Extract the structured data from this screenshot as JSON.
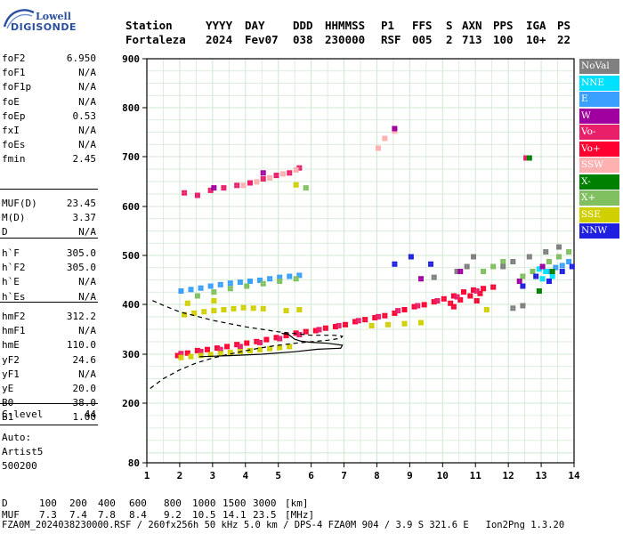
{
  "logo": {
    "top": "Lowell",
    "bottom": "DIGISONDE"
  },
  "header": {
    "row1": [
      "Station",
      "YYYY",
      "DAY",
      "DDD",
      "HHMMSS",
      "P1",
      "FFS",
      "S",
      "AXN",
      "PPS",
      "IGA",
      "PS"
    ],
    "row2": [
      "Fortaleza",
      "2024",
      "Fev07",
      "038",
      "230000",
      "RSF",
      "005",
      "2",
      "713",
      "100",
      "10+",
      "22"
    ]
  },
  "params_group1": [
    {
      "name": "foF2",
      "value": "6.950"
    },
    {
      "name": "foF1",
      "value": "N/A"
    },
    {
      "name": "foF1p",
      "value": "N/A"
    },
    {
      "name": "foE",
      "value": "N/A"
    },
    {
      "name": "foEp",
      "value": "0.53"
    },
    {
      "name": "fxI",
      "value": "N/A"
    },
    {
      "name": "foEs",
      "value": "N/A"
    },
    {
      "name": "fmin",
      "value": "2.45"
    }
  ],
  "params_group2": [
    {
      "name": "MUF(D)",
      "value": "23.45"
    },
    {
      "name": "M(D)",
      "value": "3.37"
    },
    {
      "name": "D",
      "value": "N/A"
    }
  ],
  "params_group3": [
    {
      "name": "h`F",
      "value": "305.0"
    },
    {
      "name": "h`F2",
      "value": "305.0"
    },
    {
      "name": "h`E",
      "value": "N/A"
    },
    {
      "name": "h`Es",
      "value": "N/A"
    }
  ],
  "params_group4": [
    {
      "name": "hmF2",
      "value": "312.2"
    },
    {
      "name": "hmF1",
      "value": "N/A"
    },
    {
      "name": "hmE",
      "value": "110.0"
    },
    {
      "name": "yF2",
      "value": "24.6"
    },
    {
      "name": "yF1",
      "value": "N/A"
    },
    {
      "name": "yE",
      "value": "20.0"
    },
    {
      "name": "B0",
      "value": "38.0"
    },
    {
      "name": "B1",
      "value": "1.00"
    }
  ],
  "params_group5": [
    {
      "name": "C-level",
      "value": "44"
    }
  ],
  "auto_block": [
    "Auto:",
    "Artist5",
    "500200"
  ],
  "legend": [
    {
      "label": "NoVal",
      "color": "#808080"
    },
    {
      "label": "NNE",
      "color": "#00e0ff"
    },
    {
      "label": "E",
      "color": "#3aa0ff"
    },
    {
      "label": "W",
      "color": "#a000a0"
    },
    {
      "label": "Vo-",
      "color": "#e8206a"
    },
    {
      "label": "Vo+",
      "color": "#ff0030"
    },
    {
      "label": "SSW",
      "color": "#ffb0b0"
    },
    {
      "label": "X-",
      "color": "#008000"
    },
    {
      "label": "X+",
      "color": "#80c060"
    },
    {
      "label": "SSE",
      "color": "#d0d000"
    },
    {
      "label": "NNW",
      "color": "#2020e0"
    }
  ],
  "bottom_table": {
    "d_label": "D",
    "d_values": [
      "100",
      "200",
      "400",
      "600",
      "800",
      "1000",
      "1500",
      "3000"
    ],
    "d_unit": "[km]",
    "muf_label": "MUF",
    "muf_values": [
      "7.3",
      "7.4",
      "7.8",
      "8.4",
      "9.2",
      "10.5",
      "14.1",
      "23.5"
    ],
    "muf_unit": "[MHz]"
  },
  "footer": "FZA0M_2024038230000.RSF / 260fx256h 50 kHz 5.0 km / DPS-4 FZA0M 904 / 3.9 S 321.6 E   Ion2Png 1.3.20",
  "chart_data": {
    "type": "scatter",
    "x_ticks": [
      1,
      2,
      3,
      4,
      5,
      6,
      7,
      8,
      9,
      10,
      11,
      12,
      13,
      14
    ],
    "y_ticks": [
      80,
      200,
      300,
      400,
      500,
      600,
      700,
      800,
      900
    ],
    "xlim": [
      1,
      14
    ],
    "ylim": [
      80,
      900
    ],
    "grid": true,
    "profile_dashed": [
      [
        1.1,
        230
      ],
      [
        1.5,
        250
      ],
      [
        2.0,
        268
      ],
      [
        2.5,
        282
      ],
      [
        3.0,
        292
      ],
      [
        3.5,
        300
      ],
      [
        4.0,
        307
      ],
      [
        4.5,
        313
      ],
      [
        5.0,
        318
      ],
      [
        5.5,
        322
      ],
      [
        6.0,
        325
      ],
      [
        6.5,
        328
      ],
      [
        6.9,
        332
      ],
      [
        6.95,
        336
      ],
      [
        6.7,
        338
      ],
      [
        6.0,
        338
      ],
      [
        5.0,
        345
      ],
      [
        4.0,
        355
      ],
      [
        3.0,
        368
      ],
      [
        2.0,
        385
      ],
      [
        1.5,
        398
      ],
      [
        1.1,
        410
      ]
    ],
    "profile_solid": [
      [
        2.6,
        295
      ],
      [
        3.5,
        297
      ],
      [
        4.5,
        300
      ],
      [
        5.5,
        305
      ],
      [
        6.2,
        310
      ],
      [
        6.9,
        312
      ],
      [
        6.95,
        318
      ],
      [
        6.5,
        322
      ],
      [
        6.0,
        324
      ],
      [
        5.7,
        326
      ],
      [
        5.5,
        330
      ],
      [
        5.4,
        335
      ],
      [
        5.3,
        340
      ],
      [
        5.1,
        342
      ]
    ],
    "clusters": [
      {
        "color": "#ff0030",
        "pts": [
          [
            1.9,
            300
          ],
          [
            2.2,
            305
          ],
          [
            2.5,
            310
          ],
          [
            2.8,
            312
          ],
          [
            3.1,
            315
          ],
          [
            3.4,
            318
          ],
          [
            3.7,
            322
          ],
          [
            4.0,
            325
          ],
          [
            4.3,
            328
          ],
          [
            4.6,
            332
          ],
          [
            4.9,
            336
          ],
          [
            5.2,
            340
          ],
          [
            5.5,
            345
          ],
          [
            5.8,
            348
          ],
          [
            6.1,
            350
          ],
          [
            6.4,
            355
          ],
          [
            6.7,
            358
          ],
          [
            7.0,
            362
          ],
          [
            7.3,
            368
          ],
          [
            7.6,
            372
          ],
          [
            7.9,
            376
          ],
          [
            8.2,
            380
          ],
          [
            8.5,
            385
          ],
          [
            8.8,
            392
          ],
          [
            9.1,
            398
          ],
          [
            9.4,
            402
          ],
          [
            9.7,
            408
          ],
          [
            10.0,
            414
          ],
          [
            10.3,
            420
          ],
          [
            10.6,
            428
          ],
          [
            10.9,
            432
          ],
          [
            11.2,
            435
          ],
          [
            11.5,
            438
          ],
          [
            10.2,
            405
          ],
          [
            10.5,
            412
          ],
          [
            10.8,
            420
          ],
          [
            11.1,
            425
          ],
          [
            10.3,
            398
          ],
          [
            11.0,
            410
          ]
        ]
      },
      {
        "color": "#e8206a",
        "pts": [
          [
            2.0,
            304
          ],
          [
            2.6,
            308
          ],
          [
            3.2,
            312
          ],
          [
            3.8,
            318
          ],
          [
            4.4,
            326
          ],
          [
            5.0,
            334
          ],
          [
            5.6,
            342
          ],
          [
            6.2,
            352
          ],
          [
            6.8,
            360
          ],
          [
            7.4,
            370
          ],
          [
            8.0,
            378
          ],
          [
            8.6,
            390
          ],
          [
            9.2,
            400
          ],
          [
            9.8,
            410
          ],
          [
            10.4,
            418
          ],
          [
            11.0,
            430
          ],
          [
            2.1,
            630
          ],
          [
            2.5,
            625
          ],
          [
            2.9,
            635
          ],
          [
            3.3,
            640
          ],
          [
            3.7,
            645
          ],
          [
            4.1,
            650
          ],
          [
            4.5,
            658
          ],
          [
            4.9,
            665
          ],
          [
            5.3,
            670
          ],
          [
            5.6,
            680
          ],
          [
            12.5,
            700
          ]
        ]
      },
      {
        "color": "#ffb0b0",
        "pts": [
          [
            3.9,
            645
          ],
          [
            4.3,
            652
          ],
          [
            4.7,
            660
          ],
          [
            5.1,
            668
          ],
          [
            5.5,
            676
          ],
          [
            8.0,
            720
          ],
          [
            8.2,
            740
          ],
          [
            8.5,
            755
          ]
        ]
      },
      {
        "color": "#d0d000",
        "pts": [
          [
            2.0,
            296
          ],
          [
            2.3,
            298
          ],
          [
            2.6,
            300
          ],
          [
            2.9,
            302
          ],
          [
            3.2,
            304
          ],
          [
            3.5,
            306
          ],
          [
            3.8,
            308
          ],
          [
            4.1,
            310
          ],
          [
            4.4,
            312
          ],
          [
            4.7,
            314
          ],
          [
            5.0,
            316
          ],
          [
            5.3,
            318
          ],
          [
            2.1,
            382
          ],
          [
            2.4,
            385
          ],
          [
            2.7,
            388
          ],
          [
            3.0,
            390
          ],
          [
            3.3,
            392
          ],
          [
            3.6,
            394
          ],
          [
            3.9,
            396
          ],
          [
            4.2,
            395
          ],
          [
            4.5,
            394
          ],
          [
            5.2,
            390
          ],
          [
            5.6,
            392
          ],
          [
            2.2,
            405
          ],
          [
            3.0,
            410
          ],
          [
            7.8,
            360
          ],
          [
            8.3,
            362
          ],
          [
            8.8,
            364
          ],
          [
            9.3,
            366
          ],
          [
            11.3,
            392
          ],
          [
            5.5,
            646
          ]
        ]
      },
      {
        "color": "#3aa0ff",
        "pts": [
          [
            2.0,
            430
          ],
          [
            2.3,
            433
          ],
          [
            2.6,
            436
          ],
          [
            2.9,
            440
          ],
          [
            3.2,
            443
          ],
          [
            3.5,
            446
          ],
          [
            3.8,
            448
          ],
          [
            4.1,
            450
          ],
          [
            4.4,
            452
          ],
          [
            4.7,
            455
          ],
          [
            5.0,
            458
          ],
          [
            5.3,
            460
          ],
          [
            5.6,
            462
          ],
          [
            13.4,
            478
          ],
          [
            13.6,
            482
          ],
          [
            13.8,
            490
          ],
          [
            13.2,
            470
          ]
        ]
      },
      {
        "color": "#80c060",
        "pts": [
          [
            2.5,
            420
          ],
          [
            3.0,
            428
          ],
          [
            3.5,
            435
          ],
          [
            4.0,
            440
          ],
          [
            4.5,
            445
          ],
          [
            5.0,
            450
          ],
          [
            5.5,
            455
          ],
          [
            12.4,
            460
          ],
          [
            12.7,
            470
          ],
          [
            13.0,
            480
          ],
          [
            13.2,
            490
          ],
          [
            13.5,
            500
          ],
          [
            13.8,
            510
          ],
          [
            11.2,
            470
          ],
          [
            11.5,
            480
          ],
          [
            11.8,
            490
          ],
          [
            5.8,
            640
          ]
        ]
      },
      {
        "color": "#808080",
        "pts": [
          [
            11.8,
            480
          ],
          [
            12.1,
            490
          ],
          [
            12.6,
            500
          ],
          [
            13.1,
            510
          ],
          [
            13.5,
            520
          ],
          [
            12.1,
            395
          ],
          [
            12.4,
            400
          ],
          [
            9.7,
            458
          ],
          [
            10.4,
            470
          ],
          [
            10.7,
            480
          ],
          [
            10.9,
            500
          ]
        ]
      },
      {
        "color": "#00e0ff",
        "pts": [
          [
            12.9,
            475
          ],
          [
            13.1,
            470
          ],
          [
            13.0,
            455
          ],
          [
            13.3,
            460
          ]
        ]
      },
      {
        "color": "#a000a0",
        "pts": [
          [
            3.0,
            640
          ],
          [
            4.5,
            670
          ],
          [
            8.5,
            760
          ],
          [
            12.3,
            450
          ],
          [
            13.0,
            480
          ],
          [
            9.3,
            455
          ],
          [
            10.5,
            470
          ]
        ]
      },
      {
        "color": "#2020e0",
        "pts": [
          [
            12.4,
            440
          ],
          [
            12.8,
            460
          ],
          [
            13.2,
            450
          ],
          [
            13.6,
            470
          ],
          [
            13.9,
            480
          ],
          [
            8.5,
            485
          ],
          [
            9.0,
            500
          ],
          [
            9.6,
            485
          ]
        ]
      },
      {
        "color": "#008000",
        "pts": [
          [
            12.6,
            700
          ],
          [
            13.3,
            470
          ],
          [
            12.9,
            430
          ]
        ]
      }
    ]
  }
}
